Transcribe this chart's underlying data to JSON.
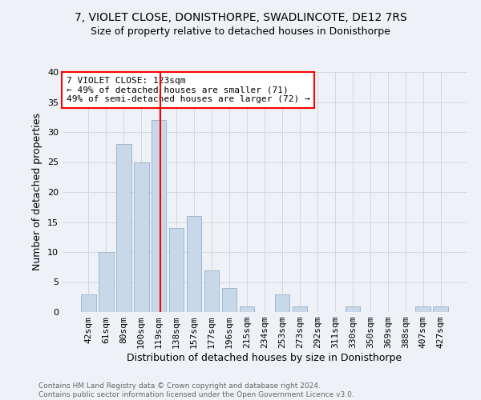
{
  "title1": "7, VIOLET CLOSE, DONISTHORPE, SWADLINCOTE, DE12 7RS",
  "title2": "Size of property relative to detached houses in Donisthorpe",
  "xlabel": "Distribution of detached houses by size in Donisthorpe",
  "ylabel": "Number of detached properties",
  "footnote": "Contains HM Land Registry data © Crown copyright and database right 2024.\nContains public sector information licensed under the Open Government Licence v3.0.",
  "bar_labels": [
    "42sqm",
    "61sqm",
    "80sqm",
    "100sqm",
    "119sqm",
    "138sqm",
    "157sqm",
    "177sqm",
    "196sqm",
    "215sqm",
    "234sqm",
    "253sqm",
    "273sqm",
    "292sqm",
    "311sqm",
    "330sqm",
    "350sqm",
    "369sqm",
    "388sqm",
    "407sqm",
    "427sqm"
  ],
  "bar_values": [
    3,
    10,
    28,
    25,
    32,
    14,
    16,
    7,
    4,
    1,
    0,
    3,
    1,
    0,
    0,
    1,
    0,
    0,
    0,
    1,
    1
  ],
  "bar_color": "#c8d8e8",
  "bar_edgecolor": "#a0b8cc",
  "grid_color": "#d0d8e0",
  "vline_x": 4.08,
  "vline_color": "red",
  "annotation_text": "7 VIOLET CLOSE: 123sqm\n← 49% of detached houses are smaller (71)\n49% of semi-detached houses are larger (72) →",
  "annotation_box_color": "white",
  "annotation_box_edgecolor": "red",
  "ylim": [
    0,
    40
  ],
  "yticks": [
    0,
    5,
    10,
    15,
    20,
    25,
    30,
    35,
    40
  ],
  "bg_color": "#eef2f6",
  "title1_fontsize": 10,
  "title2_fontsize": 9,
  "ylabel_fontsize": 9,
  "xlabel_fontsize": 9,
  "tick_fontsize": 8,
  "annot_fontsize": 8,
  "footnote_fontsize": 6.5,
  "footnote_color": "#666666"
}
